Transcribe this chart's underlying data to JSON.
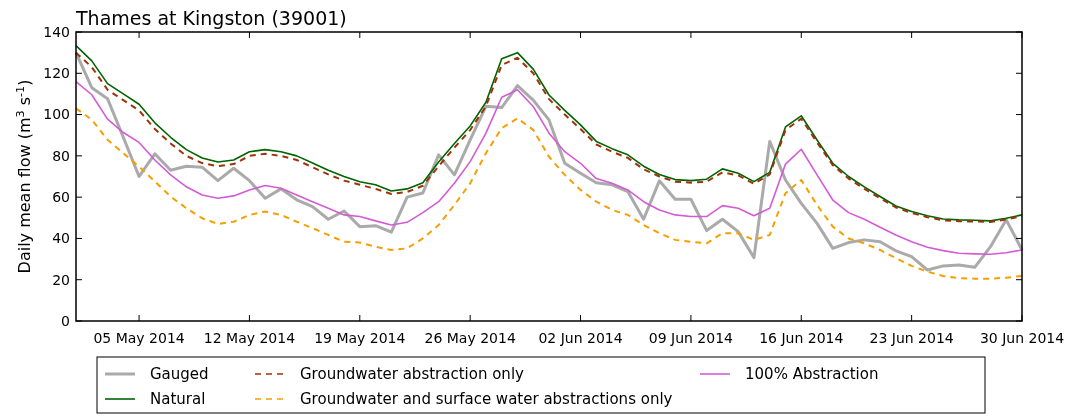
{
  "chart_data": {
    "type": "line",
    "title": "Thames at Kingston (39001)",
    "ylabel": "Daily mean flow (m$^{3}$ s$^{-1}$)",
    "x": [
      "2014-05-01",
      "2014-05-02",
      "2014-05-03",
      "2014-05-04",
      "2014-05-05",
      "2014-05-06",
      "2014-05-07",
      "2014-05-08",
      "2014-05-09",
      "2014-05-10",
      "2014-05-11",
      "2014-05-12",
      "2014-05-13",
      "2014-05-14",
      "2014-05-15",
      "2014-05-16",
      "2014-05-17",
      "2014-05-18",
      "2014-05-19",
      "2014-05-20",
      "2014-05-21",
      "2014-05-22",
      "2014-05-23",
      "2014-05-24",
      "2014-05-25",
      "2014-05-26",
      "2014-05-27",
      "2014-05-28",
      "2014-05-29",
      "2014-05-30",
      "2014-05-31",
      "2014-06-01",
      "2014-06-02",
      "2014-06-03",
      "2014-06-04",
      "2014-06-05",
      "2014-06-06",
      "2014-06-07",
      "2014-06-08",
      "2014-06-09",
      "2014-06-10",
      "2014-06-11",
      "2014-06-12",
      "2014-06-13",
      "2014-06-14",
      "2014-06-15",
      "2014-06-16",
      "2014-06-17",
      "2014-06-18",
      "2014-06-19",
      "2014-06-20",
      "2014-06-21",
      "2014-06-22",
      "2014-06-23",
      "2014-06-24",
      "2014-06-25",
      "2014-06-26",
      "2014-06-27",
      "2014-06-28",
      "2014-06-29",
      "2014-06-30"
    ],
    "xlim": [
      "2014-05-01",
      "2014-06-30"
    ],
    "xticks": [
      {
        "value": "2014-05-05",
        "label": "05 May 2014"
      },
      {
        "value": "2014-05-12",
        "label": "12 May 2014"
      },
      {
        "value": "2014-05-19",
        "label": "19 May 2014"
      },
      {
        "value": "2014-05-26",
        "label": "26 May 2014"
      },
      {
        "value": "2014-06-02",
        "label": "02 Jun 2014"
      },
      {
        "value": "2014-06-09",
        "label": "09 Jun 2014"
      },
      {
        "value": "2014-06-16",
        "label": "16 Jun 2014"
      },
      {
        "value": "2014-06-23",
        "label": "23 Jun 2014"
      },
      {
        "value": "2014-06-30",
        "label": "30 Jun 2014"
      }
    ],
    "ylim": [
      0,
      140
    ],
    "yticks": [
      0,
      20,
      40,
      60,
      80,
      100,
      120,
      140
    ],
    "grid": false,
    "legend": "bottom",
    "series": [
      {
        "name": "Gauged",
        "color": "#aaaaaa",
        "line_style": "solid",
        "values": [
          130,
          113,
          107.7,
          89,
          70,
          81,
          73,
          75,
          74.5,
          68,
          74,
          68,
          59.5,
          64,
          58.7,
          55.4,
          49.3,
          53.3,
          45.7,
          46.2,
          43,
          60,
          62,
          80.5,
          70.8,
          87.7,
          104,
          103.4,
          114,
          107,
          97.4,
          76.4,
          71.6,
          67,
          66,
          62.7,
          49.3,
          67.9,
          59,
          59,
          43.8,
          49.3,
          43.3,
          30.7,
          87,
          68.3,
          57,
          47.3,
          35.2,
          38,
          39.3,
          38.4,
          34,
          31.2,
          24.7,
          26.7,
          27.1,
          26,
          36,
          49,
          34.4
        ]
      },
      {
        "name": "Natural",
        "color": "#006400",
        "line_style": "solid",
        "values": [
          133.4,
          126,
          115,
          110,
          105,
          96,
          89,
          83,
          79,
          77,
          78,
          82,
          83,
          82,
          80,
          76.5,
          73,
          70,
          67.5,
          66,
          63,
          64,
          67,
          77,
          86,
          94.5,
          106,
          127,
          130,
          122,
          109.5,
          102,
          95,
          87,
          83.5,
          80.5,
          75,
          71,
          68.5,
          68,
          68.7,
          73.7,
          71.6,
          67.5,
          72,
          94,
          99.4,
          87.7,
          76.4,
          70,
          65,
          60.3,
          55.7,
          53,
          51,
          49.4,
          49,
          48.8,
          48.5,
          49.8,
          51.4
        ]
      },
      {
        "name": "Groundwater abstraction only",
        "color": "#a0320a",
        "line_style": "dashed",
        "values": [
          130,
          123,
          112,
          107,
          102,
          93,
          86,
          80,
          76.5,
          75,
          76,
          80,
          81,
          80,
          78,
          74.5,
          71,
          68,
          66,
          64,
          61.5,
          62.5,
          65.5,
          75,
          84,
          92.5,
          104,
          124,
          127.5,
          120,
          107.5,
          100,
          93,
          85.5,
          82,
          79,
          73.5,
          70,
          67.5,
          67,
          67.5,
          72,
          70.5,
          66.5,
          71,
          92.5,
          98,
          86.5,
          75.5,
          69,
          64,
          59.5,
          55,
          52.3,
          50.3,
          48.8,
          48.3,
          48.2,
          48,
          49.2,
          50.8
        ]
      },
      {
        "name": "Groundwater and surface water abstractions only",
        "color": "#f5a000",
        "line_style": "dashed",
        "values": [
          103,
          97.5,
          87.8,
          81.3,
          74.8,
          67.6,
          60.3,
          54.6,
          49.8,
          47,
          48.1,
          51.4,
          53,
          51.4,
          48.1,
          45,
          41.7,
          38.4,
          38,
          36,
          34.4,
          35.2,
          40,
          46.5,
          56.2,
          66.7,
          81.3,
          93.4,
          98.2,
          92.6,
          79.6,
          70.8,
          63.5,
          57.8,
          53.8,
          51.4,
          46.5,
          42.5,
          39.3,
          38.4,
          37.6,
          42.5,
          42.5,
          39.3,
          41.7,
          61.9,
          68.3,
          56.2,
          45.7,
          40,
          37.6,
          34.4,
          30.4,
          26.7,
          23.9,
          21.8,
          20.8,
          20.5,
          20.5,
          21,
          21.8
        ]
      },
      {
        "name": "100% Abstraction",
        "color": "#d45bd6",
        "line_style": "solid",
        "values": [
          116,
          109.6,
          97.8,
          91.3,
          86.5,
          78,
          70.8,
          65,
          61,
          59.5,
          60.6,
          63.5,
          65.6,
          64.3,
          61,
          57.8,
          54.6,
          51.4,
          50.6,
          48.5,
          46.5,
          47.8,
          52.5,
          57.8,
          66.7,
          77.2,
          91,
          108.4,
          112,
          103.9,
          91,
          82,
          76.4,
          69,
          66.7,
          63.5,
          57.8,
          53.8,
          51.4,
          50.6,
          50.6,
          55.9,
          54.6,
          51,
          54.6,
          76,
          83.2,
          70.8,
          58.6,
          52.5,
          49.3,
          45.4,
          41.7,
          38.4,
          35.7,
          34.1,
          32.8,
          32.5,
          32.3,
          33.1,
          34.4
        ]
      }
    ]
  }
}
